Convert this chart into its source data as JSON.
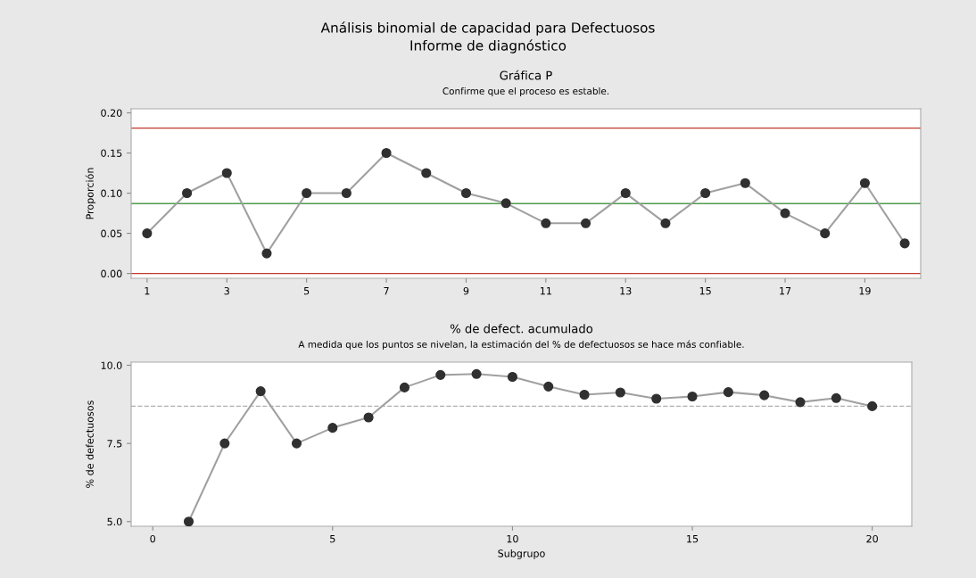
{
  "chart_data": [
    {
      "type": "line",
      "title": "Gráfica P",
      "subtitle": "Confirme que el proceso es estable.",
      "annotations": [
        "Análisis binomial de capacidad para Defectuosos",
        "Informe de diagnóstico"
      ],
      "ylabel": "Proporción",
      "x": [
        1,
        2,
        3,
        4,
        5,
        6,
        7,
        8,
        9,
        10,
        11,
        12,
        13,
        14,
        15,
        16,
        17,
        18,
        19,
        20
      ],
      "series": [
        {
          "color": "#a0a0a0",
          "values": [
            0.05,
            0.1,
            0.125,
            0.025,
            0.1,
            0.1,
            0.15,
            0.125,
            0.1,
            0.0875,
            0.0625,
            0.0625,
            0.1,
            0.0625,
            0.1,
            0.1125,
            0.075,
            0.05,
            0.1125,
            0.0375
          ]
        }
      ],
      "xlim": [
        0.6,
        20.4
      ],
      "xticks": [
        1,
        3,
        5,
        7,
        9,
        11,
        13,
        15,
        17,
        19
      ],
      "ylim": [
        -0.006,
        0.205
      ],
      "yticks": [
        {
          "value": 0,
          "label": "0.00"
        },
        {
          "value": 0.05,
          "label": "0.05"
        },
        {
          "value": 0.1,
          "label": "0.10"
        },
        {
          "value": 0.15,
          "label": "0.15"
        },
        {
          "value": 0.2,
          "label": "0.20"
        }
      ],
      "ref_lines": [
        {
          "axis": "y",
          "value": 0.181,
          "color": "#c0392b"
        },
        {
          "axis": "y",
          "value": 0.087,
          "color": "#4e9a4e"
        },
        {
          "axis": "y",
          "value": 0,
          "color": "#c0392b"
        }
      ],
      "marker": "circle",
      "grid": false,
      "legend": false
    },
    {
      "type": "line",
      "title": "% de defect. acumulado",
      "subtitle": "A medida que los puntos se nivelan, la estimación del % de defectuosos se hace más confiable.",
      "xlabel": "Subgrupo",
      "ylabel": "% de defectuosos",
      "x": [
        1,
        2,
        3,
        4,
        5,
        6,
        7,
        8,
        9,
        10,
        11,
        12,
        13,
        14,
        15,
        16,
        17,
        18,
        19,
        20
      ],
      "series": [
        {
          "color": "#a0a0a0",
          "values": [
            5.0,
            7.5,
            9.17,
            7.5,
            8.0,
            8.33,
            9.29,
            9.69,
            9.72,
            9.63,
            9.32,
            9.06,
            9.13,
            8.93,
            9.0,
            9.14,
            9.04,
            8.82,
            8.95,
            8.69
          ]
        }
      ],
      "xlim": [
        -0.6,
        21.1
      ],
      "xticks": [
        0,
        5,
        10,
        15,
        20
      ],
      "ylim": [
        4.85,
        10.1
      ],
      "yticks": [
        {
          "value": 5,
          "label": "5.0"
        },
        {
          "value": 7.5,
          "label": "7.5"
        },
        {
          "value": 10,
          "label": "10.0"
        }
      ],
      "ref_lines": [
        {
          "axis": "y",
          "value": 8.69,
          "color": "#b0b0b0",
          "line_style": "dashed"
        }
      ],
      "marker": "circle",
      "grid": false,
      "legend": false
    }
  ]
}
